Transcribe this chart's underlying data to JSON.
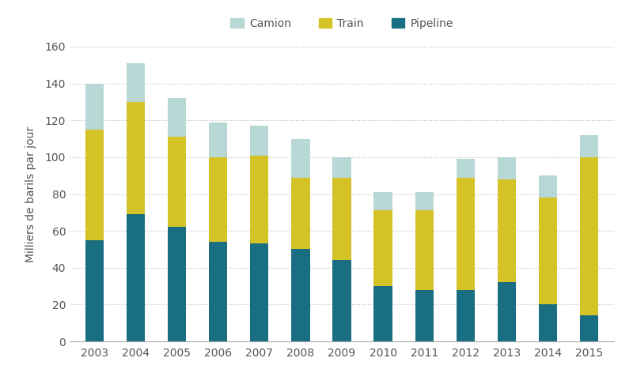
{
  "years": [
    "2003",
    "2004",
    "2005",
    "2006",
    "2007",
    "2008",
    "2009",
    "2010",
    "2011",
    "2012",
    "2013",
    "2014",
    "2015"
  ],
  "pipeline": [
    55,
    69,
    62,
    54,
    53,
    50,
    44,
    30,
    28,
    28,
    32,
    20,
    14
  ],
  "train": [
    60,
    61,
    49,
    46,
    48,
    39,
    45,
    41,
    43,
    61,
    56,
    58,
    86
  ],
  "camion": [
    25,
    21,
    21,
    19,
    16,
    21,
    11,
    10,
    10,
    10,
    12,
    12,
    12
  ],
  "pipeline_color": "#1a6e82",
  "train_color": "#d4c227",
  "camion_color": "#b8d8d5",
  "ylabel": "Milliers de barils par jour",
  "ylim": [
    0,
    160
  ],
  "yticks": [
    0,
    20,
    40,
    60,
    80,
    100,
    120,
    140,
    160
  ],
  "legend_labels": [
    "Camion",
    "Train",
    "Pipeline"
  ],
  "background_color": "#ffffff",
  "grid_color": "#bbbbbb",
  "bar_width": 0.45,
  "tick_fontsize": 10,
  "ylabel_fontsize": 10
}
